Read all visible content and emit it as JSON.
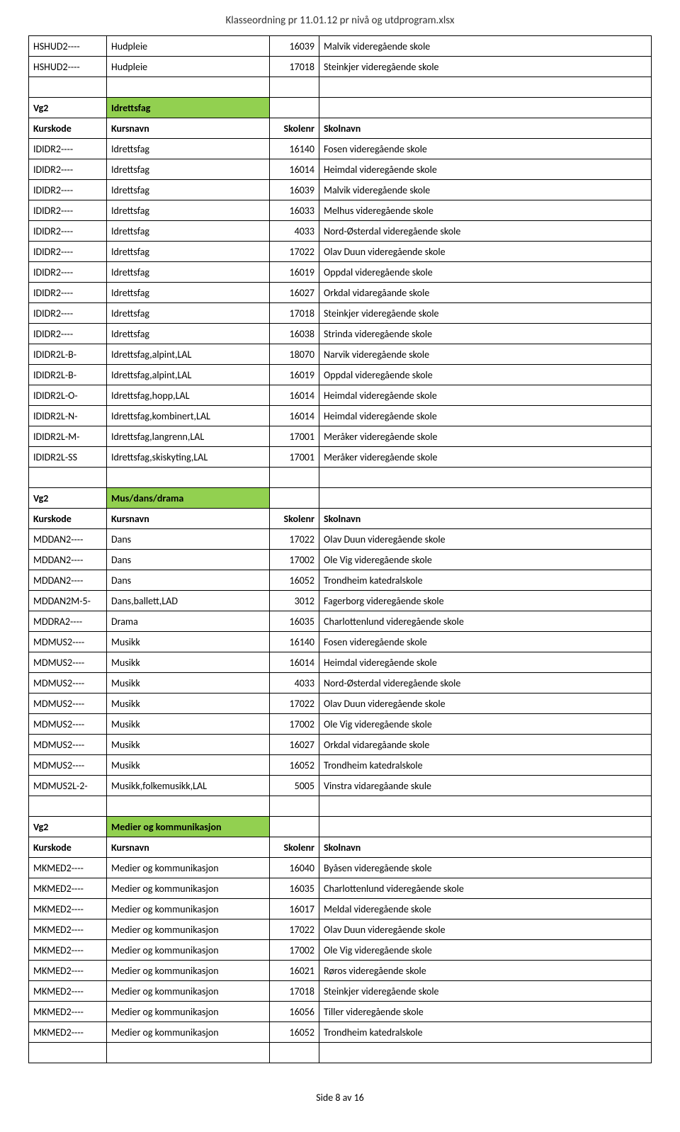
{
  "page_header": "Klasseordning pr 11.01.12 pr nivå og utdprogram.xlsx",
  "page_footer": "Side 8 av 16",
  "colors": {
    "section_bg": "#92d050",
    "border": "#000000"
  },
  "column_header": {
    "c0": "Kurskode",
    "c1": "Kursnavn",
    "c2": "Skolenr",
    "c3": "Skolnavn"
  },
  "top_rows": [
    {
      "c0": "HSHUD2----",
      "c1": "Hudpleie",
      "c2": "16039",
      "c3": "Malvik videregående skole"
    },
    {
      "c0": "HSHUD2----",
      "c1": "Hudpleie",
      "c2": "17018",
      "c3": "Steinkjer videregående skole"
    }
  ],
  "sections": [
    {
      "header": {
        "c0": "Vg2",
        "c1": "Idrettsfag"
      },
      "rows": [
        {
          "c0": "IDIDR2----",
          "c1": "Idrettsfag",
          "c2": "16140",
          "c3": "Fosen videregående skole"
        },
        {
          "c0": "IDIDR2----",
          "c1": "Idrettsfag",
          "c2": "16014",
          "c3": "Heimdal videregående skole"
        },
        {
          "c0": "IDIDR2----",
          "c1": "Idrettsfag",
          "c2": "16039",
          "c3": "Malvik videregående skole"
        },
        {
          "c0": "IDIDR2----",
          "c1": "Idrettsfag",
          "c2": "16033",
          "c3": "Melhus videregående skole"
        },
        {
          "c0": "IDIDR2----",
          "c1": "Idrettsfag",
          "c2": "4033",
          "c3": "Nord-Østerdal videregående skole"
        },
        {
          "c0": "IDIDR2----",
          "c1": "Idrettsfag",
          "c2": "17022",
          "c3": "Olav Duun videregående skole"
        },
        {
          "c0": "IDIDR2----",
          "c1": "Idrettsfag",
          "c2": "16019",
          "c3": "Oppdal videregående skole"
        },
        {
          "c0": "IDIDR2----",
          "c1": "Idrettsfag",
          "c2": "16027",
          "c3": "Orkdal vidaregåande skole"
        },
        {
          "c0": "IDIDR2----",
          "c1": "Idrettsfag",
          "c2": "17018",
          "c3": "Steinkjer videregående skole"
        },
        {
          "c0": "IDIDR2----",
          "c1": "Idrettsfag",
          "c2": "16038",
          "c3": "Strinda videregående skole"
        },
        {
          "c0": "IDIDR2L-B-",
          "c1": "Idrettsfag,alpint,LAL",
          "c2": "18070",
          "c3": "Narvik videregående skole"
        },
        {
          "c0": "IDIDR2L-B-",
          "c1": "Idrettsfag,alpint,LAL",
          "c2": "16019",
          "c3": "Oppdal videregående skole"
        },
        {
          "c0": "IDIDR2L-O-",
          "c1": "Idrettsfag,hopp,LAL",
          "c2": "16014",
          "c3": "Heimdal videregående skole"
        },
        {
          "c0": "IDIDR2L-N-",
          "c1": "Idrettsfag,kombinert,LAL",
          "c2": "16014",
          "c3": "Heimdal videregående skole"
        },
        {
          "c0": "IDIDR2L-M-",
          "c1": "Idrettsfag,langrenn,LAL",
          "c2": "17001",
          "c3": "Meråker videregående skole"
        },
        {
          "c0": "IDIDR2L-SS",
          "c1": "Idrettsfag,skiskyting,LAL",
          "c2": "17001",
          "c3": "Meråker videregående skole"
        }
      ]
    },
    {
      "header": {
        "c0": "Vg2",
        "c1": "Mus/dans/drama"
      },
      "rows": [
        {
          "c0": "MDDAN2----",
          "c1": "Dans",
          "c2": "17022",
          "c3": "Olav Duun videregående skole"
        },
        {
          "c0": "MDDAN2----",
          "c1": "Dans",
          "c2": "17002",
          "c3": "Ole Vig videregående skole"
        },
        {
          "c0": "MDDAN2----",
          "c1": "Dans",
          "c2": "16052",
          "c3": "Trondheim katedralskole"
        },
        {
          "c0": "MDDAN2M-5-",
          "c1": "Dans,ballett,LAD",
          "c2": "3012",
          "c3": "Fagerborg videregående skole"
        },
        {
          "c0": "MDDRA2----",
          "c1": "Drama",
          "c2": "16035",
          "c3": "Charlottenlund videregående skole"
        },
        {
          "c0": "MDMUS2----",
          "c1": "Musikk",
          "c2": "16140",
          "c3": "Fosen videregående skole"
        },
        {
          "c0": "MDMUS2----",
          "c1": "Musikk",
          "c2": "16014",
          "c3": "Heimdal videregående skole"
        },
        {
          "c0": "MDMUS2----",
          "c1": "Musikk",
          "c2": "4033",
          "c3": "Nord-Østerdal videregående skole"
        },
        {
          "c0": "MDMUS2----",
          "c1": "Musikk",
          "c2": "17022",
          "c3": "Olav Duun videregående skole"
        },
        {
          "c0": "MDMUS2----",
          "c1": "Musikk",
          "c2": "17002",
          "c3": "Ole Vig videregående skole"
        },
        {
          "c0": "MDMUS2----",
          "c1": "Musikk",
          "c2": "16027",
          "c3": "Orkdal vidaregåande skole"
        },
        {
          "c0": "MDMUS2----",
          "c1": "Musikk",
          "c2": "16052",
          "c3": "Trondheim katedralskole"
        },
        {
          "c0": "MDMUS2L-2-",
          "c1": "Musikk,folkemusikk,LAL",
          "c2": "5005",
          "c3": "Vinstra vidaregåande skule"
        }
      ]
    },
    {
      "header": {
        "c0": "Vg2",
        "c1": "Medier og kommunikasjon"
      },
      "rows": [
        {
          "c0": "MKMED2----",
          "c1": "Medier og kommunikasjon",
          "c2": "16040",
          "c3": "Byåsen videregående skole"
        },
        {
          "c0": "MKMED2----",
          "c1": "Medier og kommunikasjon",
          "c2": "16035",
          "c3": "Charlottenlund videregående skole"
        },
        {
          "c0": "MKMED2----",
          "c1": "Medier og kommunikasjon",
          "c2": "16017",
          "c3": "Meldal videregående skole"
        },
        {
          "c0": "MKMED2----",
          "c1": "Medier og kommunikasjon",
          "c2": "17022",
          "c3": "Olav Duun videregående skole"
        },
        {
          "c0": "MKMED2----",
          "c1": "Medier og kommunikasjon",
          "c2": "17002",
          "c3": "Ole Vig videregående skole"
        },
        {
          "c0": "MKMED2----",
          "c1": "Medier og kommunikasjon",
          "c2": "16021",
          "c3": "Røros videregående skole"
        },
        {
          "c0": "MKMED2----",
          "c1": "Medier og kommunikasjon",
          "c2": "17018",
          "c3": "Steinkjer videregående skole"
        },
        {
          "c0": "MKMED2----",
          "c1": "Medier og kommunikasjon",
          "c2": "16056",
          "c3": "Tiller videregående skole"
        },
        {
          "c0": "MKMED2----",
          "c1": "Medier og kommunikasjon",
          "c2": "16052",
          "c3": "Trondheim katedralskole"
        }
      ]
    }
  ]
}
